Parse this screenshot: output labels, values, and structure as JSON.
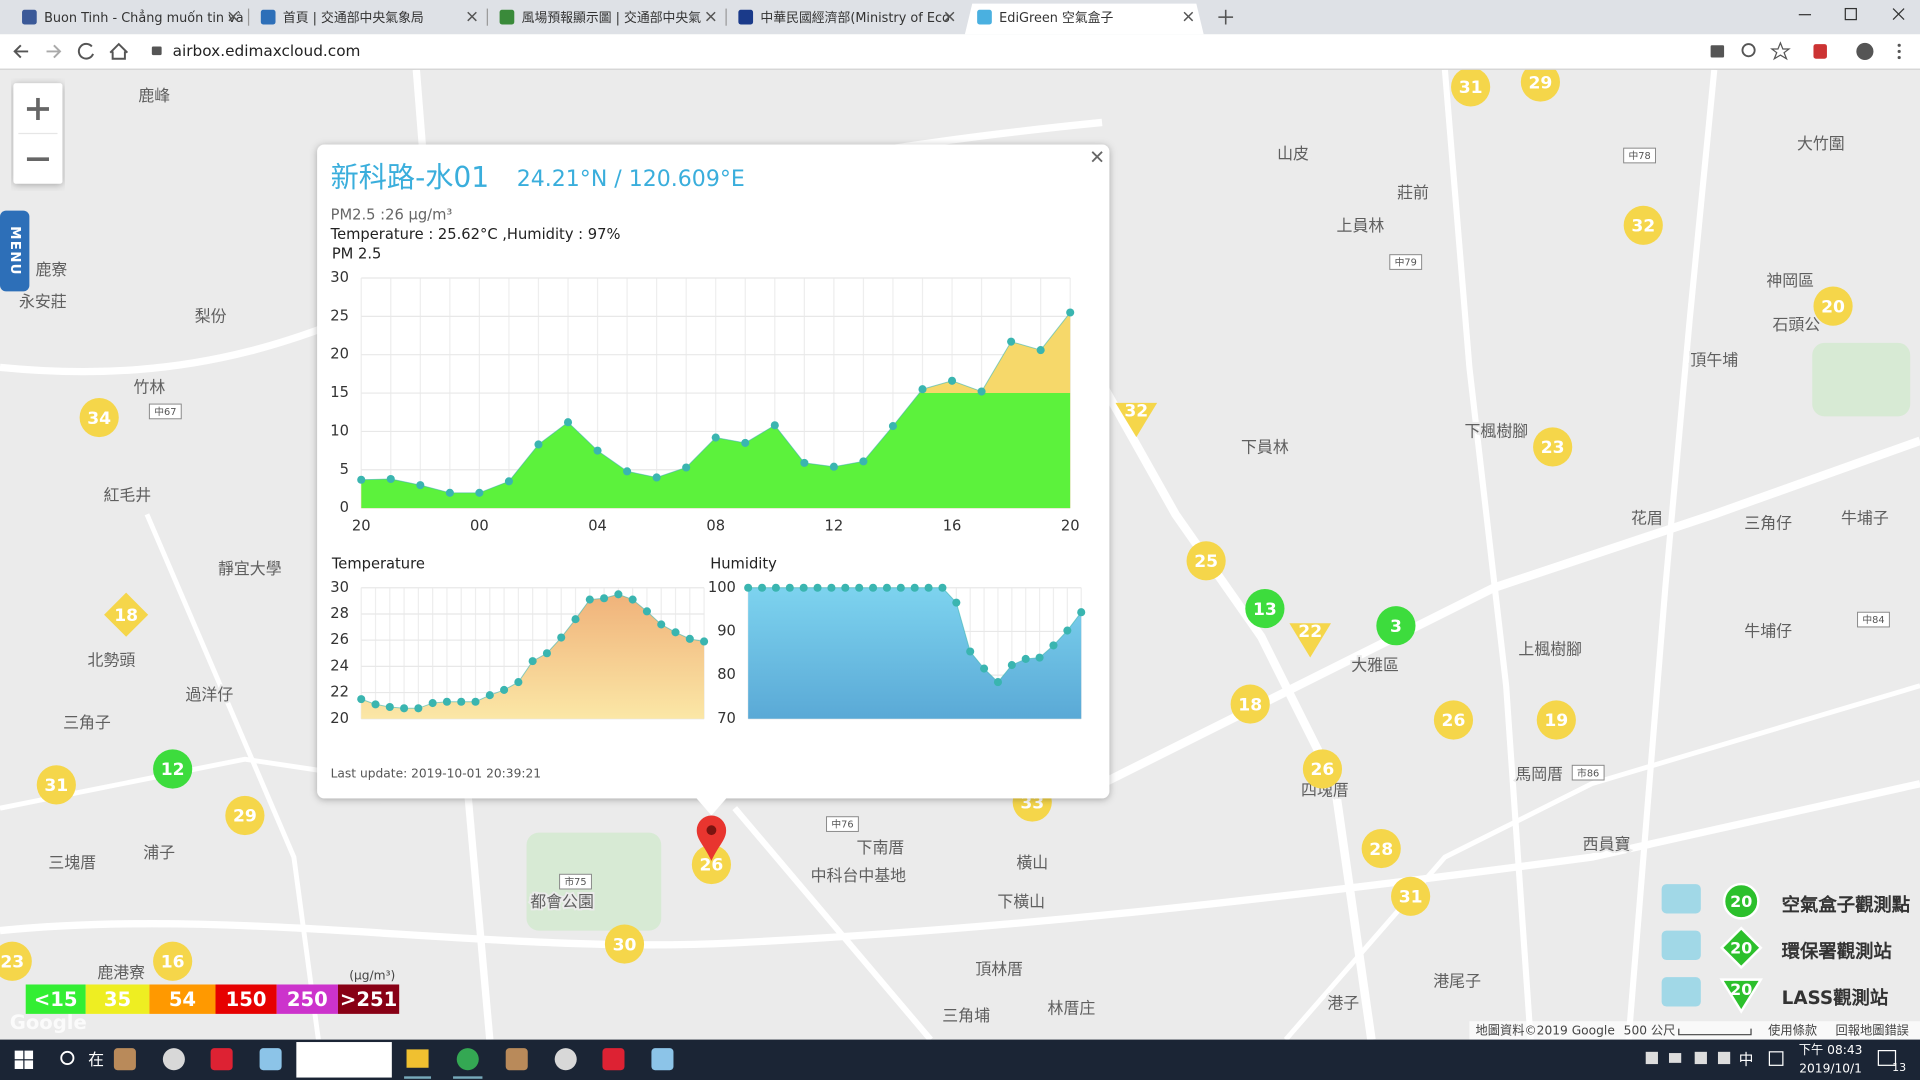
{
  "browser": {
    "tabs": [
      "Buon Tinh - Chẳng muốn tin và",
      "首頁 | 交通部中央氣象局",
      "風場預報顯示圖 | 交通部中央氣",
      "中華民國經濟部(Ministry of Eco",
      "EdiGreen 空氣盒子"
    ],
    "url": "airbox.edimaxcloud.com"
  },
  "menu": "MENU",
  "map": {
    "markers": [
      {
        "value": 31,
        "shape": "circle",
        "color": "#f5d64a"
      },
      {
        "value": 29,
        "shape": "circle",
        "color": "#f5d64a"
      },
      {
        "value": 32,
        "shape": "circle",
        "color": "#f5d64a"
      },
      {
        "value": 20,
        "shape": "circle",
        "color": "#f5d64a"
      },
      {
        "value": 34,
        "shape": "circle",
        "color": "#f5d64a"
      },
      {
        "value": 23,
        "shape": "circle",
        "color": "#f5d64a"
      },
      {
        "value": 25,
        "shape": "circle",
        "color": "#f5d64a"
      },
      {
        "value": 18,
        "shape": "circle",
        "color": "#f5d64a"
      },
      {
        "value": 26,
        "shape": "circle",
        "color": "#f5d64a"
      },
      {
        "value": 19,
        "shape": "circle",
        "color": "#f5d64a"
      },
      {
        "value": 26,
        "shape": "circle",
        "color": "#f5d64a"
      },
      {
        "value": 28,
        "shape": "circle",
        "color": "#f5d64a"
      },
      {
        "value": 31,
        "shape": "circle",
        "color": "#f5d64a"
      },
      {
        "value": 31,
        "shape": "circle",
        "color": "#f5d64a"
      },
      {
        "value": 29,
        "shape": "circle",
        "color": "#f5d64a"
      },
      {
        "value": 23,
        "shape": "circle",
        "color": "#f5d64a"
      },
      {
        "value": 16,
        "shape": "circle",
        "color": "#f5d64a"
      },
      {
        "value": 30,
        "shape": "circle",
        "color": "#f5d64a"
      },
      {
        "value": 26,
        "shape": "circle",
        "color": "#f5d64a"
      },
      {
        "value": 33,
        "shape": "circle",
        "color": "#f5d64a"
      },
      {
        "value": 13,
        "shape": "circle",
        "color": "#3ddc3d"
      },
      {
        "value": 3,
        "shape": "circle",
        "color": "#3ddc3d"
      },
      {
        "value": 12,
        "shape": "circle",
        "color": "#3ddc3d"
      },
      {
        "value": 18,
        "shape": "diamond",
        "color": "#f5d64a"
      },
      {
        "value": 32,
        "shape": "triangle",
        "color": "#f5d64a"
      },
      {
        "value": 22,
        "shape": "triangle",
        "color": "#f5d64a"
      }
    ],
    "labels": [
      "鹿峰",
      "山皮",
      "莊前",
      "上員林",
      "大竹圍",
      "神岡區",
      "石頭公",
      "頂午埔",
      "下員林",
      "下楓樹腳",
      "花眉",
      "三角仔",
      "牛埔子",
      "牛埔仔",
      "上楓樹腳",
      "大雅區",
      "馬岡厝",
      "西員寶",
      "四塊厝",
      "下南厝",
      "中科台中基地",
      "橫山",
      "下橫山",
      "頂林厝",
      "三角埔",
      "林厝庄",
      "港尾子",
      "港子",
      "都會公園",
      "鹿寮",
      "永安莊",
      "梨份",
      "竹林",
      "紅毛井",
      "靜宜大學",
      "北勢頭",
      "過洋仔",
      "三角子",
      "三塊厝",
      "浦子",
      "鹿港寮"
    ],
    "shields": [
      "中79",
      "中78",
      "中67",
      "市75",
      "中76",
      "市86",
      "中84"
    ],
    "logo": "Google",
    "footer": [
      "地圖資料©2019 Google",
      "500 公尺",
      "使用條款",
      "回報地圖錯誤"
    ]
  },
  "popup": {
    "title": "新科路-水01",
    "coords": "24.21°N / 120.609°E",
    "pm25": "PM2.5 :26 μg/m³",
    "weather": "Temperature : 25.62°C ,Humidity : 97%",
    "last_update": "Last update: 2019-10-01 20:39:21"
  },
  "chart_data": [
    {
      "type": "area",
      "title": "PM 2.5",
      "categories": [
        "20",
        null,
        null,
        null,
        "00",
        null,
        null,
        null,
        "04",
        null,
        null,
        null,
        "08",
        null,
        null,
        null,
        "12",
        null,
        null,
        null,
        "16",
        null,
        null,
        null,
        "20"
      ],
      "values": [
        3.7,
        3.8,
        3,
        2,
        2,
        3.5,
        8.3,
        11.2,
        7.5,
        4.8,
        4,
        5.3,
        9.2,
        8.5,
        10.8,
        5.9,
        5.4,
        6.1,
        10.7,
        15.5,
        16.6,
        15.2,
        21.7,
        20.6,
        25.5
      ],
      "ylim": [
        0,
        30
      ],
      "yticks": [
        0,
        5,
        10,
        15,
        20,
        25,
        30
      ],
      "grid": true,
      "threshold": 15,
      "color": "#5cf23c",
      "color_above": "#f6d86a",
      "point_color": "#3ab5b0"
    },
    {
      "type": "area",
      "title": "Temperature",
      "values": [
        21.5,
        21.1,
        20.9,
        20.8,
        20.8,
        21.2,
        21.3,
        21.3,
        21.3,
        21.8,
        22.2,
        22.8,
        24.4,
        25.0,
        26.2,
        27.6,
        29.1,
        29.2,
        29.5,
        29.1,
        28.2,
        27.2,
        26.6,
        26.1,
        25.9
      ],
      "ylim": [
        20,
        30
      ],
      "yticks": [
        20,
        22,
        24,
        26,
        28,
        30
      ],
      "grid": true,
      "color": "#f0b27a",
      "color_bottom": "#fbe7a6",
      "point_color": "#3ab5b0"
    },
    {
      "type": "area",
      "title": "Humidity",
      "values": [
        100,
        100,
        100,
        100,
        100,
        100,
        100,
        100,
        100,
        100,
        100,
        100,
        100,
        100,
        100,
        96.6,
        85.4,
        81.5,
        78.4,
        82.3,
        83.7,
        84,
        86.8,
        90.2,
        94.4
      ],
      "ylim": [
        70,
        100
      ],
      "yticks": [
        70,
        80,
        90,
        100
      ],
      "grid": true,
      "color": "#7dd3ef",
      "color_bottom": "#5aa9d6",
      "point_color": "#3ab5b0"
    }
  ],
  "scale": {
    "unit": "(μg/m³)",
    "levels": [
      {
        "label": "<15",
        "color": "#33ee33"
      },
      {
        "label": "35",
        "color": "#eeee22"
      },
      {
        "label": "54",
        "color": "#ff9900"
      },
      {
        "label": "150",
        "color": "#e60000"
      },
      {
        "label": "250",
        "color": "#cc33cc"
      },
      {
        "label": ">251",
        "color": "#880015"
      }
    ]
  },
  "station_legend": [
    {
      "count": 20,
      "label": "空氣盒子觀測點"
    },
    {
      "count": 20,
      "label": "環保署觀測站"
    },
    {
      "count": 20,
      "label": "LASS觀測站"
    }
  ],
  "taskbar": {
    "search": "在",
    "ime": "中",
    "time": "下午 08:43",
    "date": "2019/10/1",
    "notifications": 13
  }
}
